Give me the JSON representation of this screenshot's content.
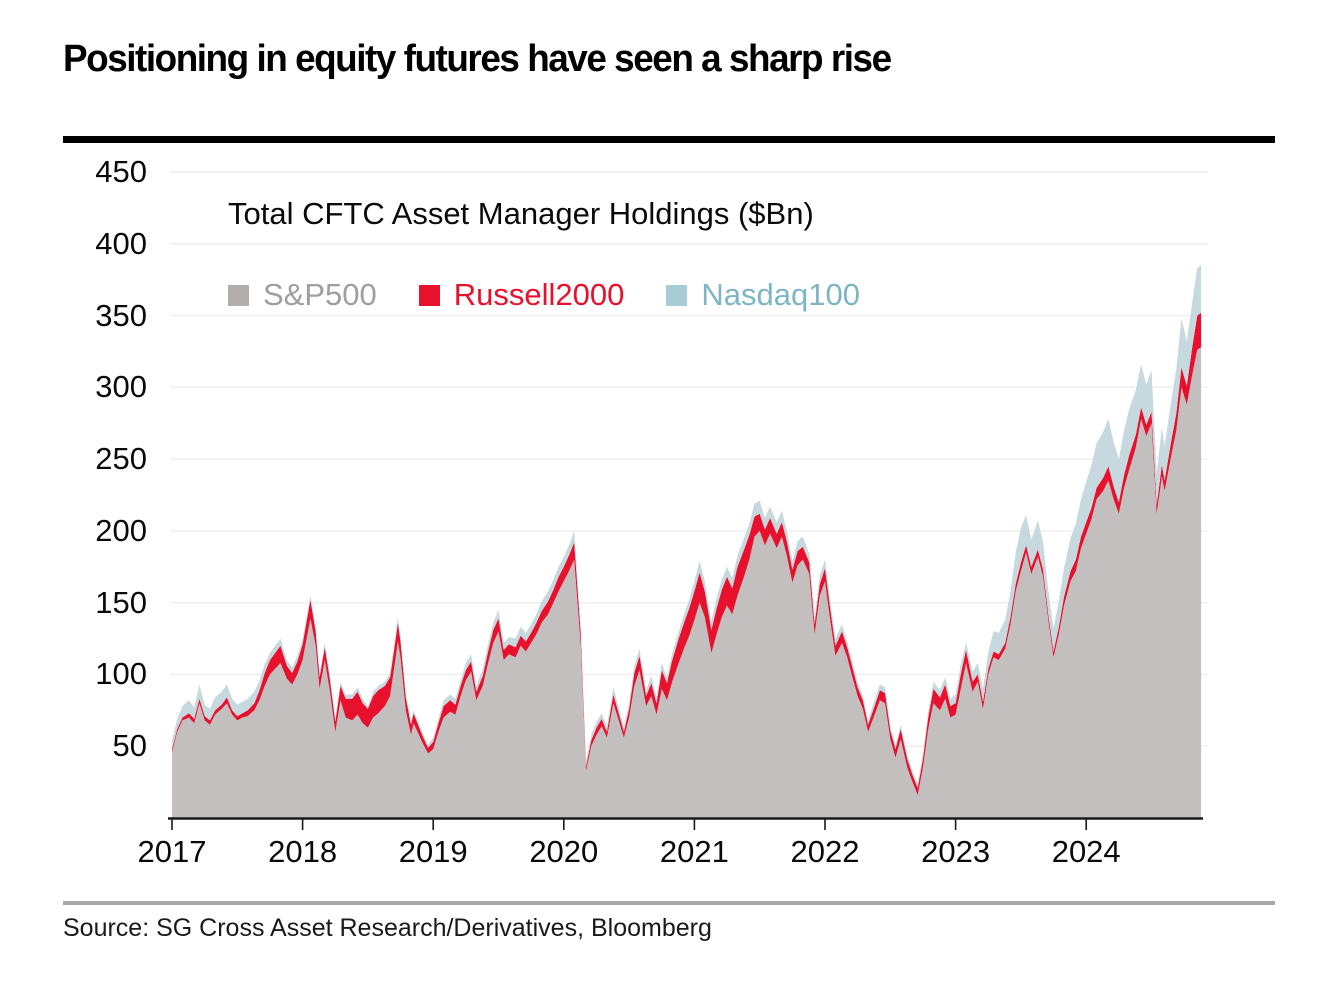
{
  "title": "Positioning in equity futures have seen a sharp rise",
  "source": "Source: SG Cross Asset Research/Derivatives, Bloomberg",
  "rules": {
    "top_color": "#000000",
    "bottom_color": "#a8a8a8"
  },
  "chart_data": {
    "type": "area",
    "stacked": true,
    "title": "Total CFTC Asset Manager Holdings ($Bn)",
    "xlabel": "",
    "ylabel": "",
    "grid": "faint-horizontal",
    "legend_position": "top-left-inside",
    "axis_color": "#1a1a1a",
    "grid_color": "#ededed",
    "ylim": [
      0,
      460
    ],
    "y_ticks": [
      50,
      100,
      150,
      200,
      250,
      300,
      350,
      400,
      450
    ],
    "x_ticks": [
      2017,
      2018,
      2019,
      2020,
      2021,
      2022,
      2023,
      2024
    ],
    "stack_order_note": "values are per-series contributions stacked bottom-to-top: S&P500, Russell2000, Nasdaq100; x is decimal year",
    "x": [
      2017.0,
      2017.04,
      2017.08,
      2017.13,
      2017.17,
      2017.21,
      2017.25,
      2017.29,
      2017.33,
      2017.38,
      2017.42,
      2017.46,
      2017.5,
      2017.54,
      2017.58,
      2017.63,
      2017.67,
      2017.71,
      2017.75,
      2017.79,
      2017.83,
      2017.88,
      2017.92,
      2017.96,
      2018.0,
      2018.06,
      2018.1,
      2018.13,
      2018.17,
      2018.21,
      2018.25,
      2018.29,
      2018.33,
      2018.38,
      2018.42,
      2018.46,
      2018.5,
      2018.54,
      2018.58,
      2018.63,
      2018.67,
      2018.71,
      2018.73,
      2018.75,
      2018.79,
      2018.83,
      2018.85,
      2018.88,
      2018.92,
      2018.96,
      2019.0,
      2019.04,
      2019.08,
      2019.13,
      2019.17,
      2019.21,
      2019.25,
      2019.29,
      2019.33,
      2019.38,
      2019.42,
      2019.46,
      2019.5,
      2019.54,
      2019.58,
      2019.63,
      2019.67,
      2019.71,
      2019.75,
      2019.79,
      2019.83,
      2019.88,
      2019.92,
      2019.96,
      2020.0,
      2020.04,
      2020.08,
      2020.13,
      2020.17,
      2020.21,
      2020.25,
      2020.29,
      2020.33,
      2020.38,
      2020.42,
      2020.46,
      2020.5,
      2020.54,
      2020.58,
      2020.63,
      2020.67,
      2020.71,
      2020.75,
      2020.79,
      2020.83,
      2020.88,
      2020.92,
      2020.96,
      2021.0,
      2021.04,
      2021.08,
      2021.13,
      2021.17,
      2021.21,
      2021.25,
      2021.29,
      2021.33,
      2021.38,
      2021.42,
      2021.46,
      2021.5,
      2021.54,
      2021.58,
      2021.63,
      2021.67,
      2021.71,
      2021.75,
      2021.79,
      2021.83,
      2021.88,
      2021.92,
      2021.96,
      2022.0,
      2022.04,
      2022.08,
      2022.13,
      2022.17,
      2022.21,
      2022.25,
      2022.29,
      2022.33,
      2022.38,
      2022.42,
      2022.46,
      2022.5,
      2022.54,
      2022.58,
      2022.63,
      2022.67,
      2022.71,
      2022.75,
      2022.79,
      2022.83,
      2022.88,
      2022.92,
      2022.96,
      2023.0,
      2023.04,
      2023.08,
      2023.13,
      2023.17,
      2023.21,
      2023.25,
      2023.29,
      2023.33,
      2023.38,
      2023.42,
      2023.46,
      2023.5,
      2023.54,
      2023.58,
      2023.63,
      2023.67,
      2023.71,
      2023.75,
      2023.79,
      2023.83,
      2023.88,
      2023.92,
      2023.96,
      2024.0,
      2024.04,
      2024.08,
      2024.13,
      2024.17,
      2024.21,
      2024.25,
      2024.29,
      2024.33,
      2024.38,
      2024.42,
      2024.46,
      2024.5,
      2024.54,
      2024.58,
      2024.6,
      2024.65,
      2024.69,
      2024.73,
      2024.77,
      2024.81,
      2024.85,
      2024.88
    ],
    "series": [
      {
        "name": "S&P500",
        "color": "#c4bfbf",
        "swatch_color": "#b3aeae",
        "legend_text_color": "#a29d9d",
        "values": [
          46,
          60,
          68,
          70,
          66,
          80,
          68,
          65,
          72,
          76,
          80,
          72,
          68,
          70,
          71,
          75,
          82,
          92,
          100,
          104,
          108,
          97,
          93,
          100,
          110,
          139,
          120,
          90,
          110,
          88,
          60,
          82,
          70,
          68,
          72,
          66,
          63,
          70,
          73,
          78,
          85,
          110,
          123,
          112,
          75,
          58,
          66,
          60,
          52,
          45,
          48,
          60,
          70,
          74,
          72,
          85,
          96,
          102,
          82,
          92,
          108,
          122,
          130,
          110,
          114,
          112,
          120,
          116,
          122,
          128,
          136,
          142,
          150,
          158,
          165,
          172,
          180,
          120,
          33,
          50,
          58,
          64,
          56,
          80,
          68,
          56,
          70,
          92,
          103,
          78,
          85,
          72,
          90,
          82,
          95,
          108,
          118,
          127,
          138,
          150,
          140,
          115,
          128,
          140,
          148,
          142,
          155,
          168,
          180,
          196,
          200,
          190,
          198,
          188,
          196,
          182,
          164,
          176,
          180,
          170,
          128,
          155,
          165,
          138,
          113,
          122,
          112,
          98,
          85,
          76,
          60,
          72,
          82,
          80,
          55,
          42,
          55,
          35,
          25,
          16,
          35,
          62,
          80,
          75,
          83,
          70,
          72,
          90,
          108,
          88,
          95,
          76,
          100,
          112,
          110,
          118,
          135,
          158,
          172,
          185,
          170,
          182,
          168,
          138,
          112,
          128,
          148,
          165,
          172,
          188,
          198,
          208,
          222,
          228,
          235,
          222,
          212,
          230,
          243,
          258,
          278,
          266,
          275,
          212,
          238,
          228,
          252,
          270,
          300,
          288,
          308,
          326,
          328
        ]
      },
      {
        "name": "Russell2000",
        "color": "#e8112d",
        "swatch_color": "#e8112d",
        "legend_text_color": "#e8112d",
        "values": [
          2,
          2,
          2,
          3,
          3,
          3,
          3,
          3,
          3,
          3,
          4,
          3,
          3,
          3,
          4,
          5,
          7,
          9,
          10,
          11,
          12,
          9,
          8,
          9,
          11,
          13,
          10,
          8,
          9,
          8,
          7,
          10,
          13,
          15,
          16,
          14,
          13,
          15,
          16,
          14,
          13,
          13,
          13,
          11,
          9,
          7,
          7,
          6,
          5,
          4,
          5,
          6,
          8,
          8,
          7,
          7,
          7,
          7,
          6,
          7,
          8,
          9,
          9,
          7,
          7,
          7,
          7,
          7,
          7,
          8,
          8,
          9,
          9,
          10,
          10,
          11,
          12,
          8,
          3,
          4,
          5,
          5,
          4,
          6,
          5,
          4,
          6,
          9,
          10,
          7,
          9,
          8,
          13,
          12,
          15,
          17,
          18,
          19,
          20,
          21,
          18,
          16,
          18,
          19,
          20,
          18,
          20,
          19,
          17,
          14,
          12,
          11,
          11,
          10,
          10,
          10,
          9,
          10,
          9,
          8,
          7,
          8,
          9,
          8,
          7,
          8,
          7,
          7,
          6,
          6,
          5,
          6,
          7,
          7,
          6,
          6,
          7,
          6,
          5,
          5,
          6,
          8,
          10,
          9,
          10,
          8,
          8,
          10,
          9,
          7,
          5,
          5,
          4,
          4,
          4,
          4,
          5,
          5,
          6,
          5,
          5,
          5,
          5,
          4,
          4,
          5,
          6,
          7,
          8,
          8,
          8,
          8,
          8,
          9,
          10,
          9,
          8,
          9,
          10,
          9,
          8,
          8,
          8,
          6,
          8,
          7,
          10,
          12,
          14,
          13,
          19,
          24,
          24
        ]
      },
      {
        "name": "Nasdaq100",
        "color": "#c5d9de",
        "swatch_color": "#a8ccd4",
        "legend_text_color": "#7db5c4",
        "values": [
          6,
          7,
          8,
          9,
          8,
          10,
          8,
          8,
          9,
          9,
          9,
          8,
          8,
          8,
          8,
          8,
          7,
          6,
          5,
          5,
          5,
          4,
          4,
          4,
          4,
          3,
          3,
          3,
          3,
          3,
          3,
          3,
          3,
          3,
          3,
          3,
          2,
          3,
          3,
          3,
          3,
          4,
          4,
          3,
          3,
          2,
          2,
          2,
          2,
          2,
          3,
          3,
          4,
          4,
          4,
          4,
          5,
          5,
          4,
          5,
          5,
          5,
          6,
          5,
          5,
          6,
          6,
          6,
          6,
          6,
          7,
          7,
          7,
          7,
          7,
          7,
          8,
          5,
          3,
          4,
          4,
          4,
          4,
          5,
          4,
          4,
          4,
          5,
          5,
          4,
          5,
          4,
          5,
          4,
          5,
          5,
          6,
          6,
          7,
          8,
          7,
          6,
          7,
          7,
          7,
          7,
          8,
          8,
          8,
          9,
          9,
          8,
          8,
          8,
          8,
          7,
          6,
          7,
          7,
          6,
          5,
          6,
          6,
          5,
          5,
          5,
          4,
          4,
          4,
          3,
          3,
          4,
          4,
          4,
          3,
          3,
          3,
          3,
          3,
          3,
          3,
          4,
          5,
          5,
          5,
          5,
          6,
          7,
          5,
          7,
          8,
          9,
          12,
          14,
          15,
          16,
          18,
          22,
          24,
          21,
          19,
          20,
          19,
          17,
          16,
          18,
          20,
          23,
          25,
          26,
          28,
          30,
          31,
          32,
          33,
          31,
          30,
          31,
          32,
          31,
          30,
          28,
          29,
          22,
          26,
          24,
          28,
          31,
          34,
          31,
          31,
          33,
          33
        ]
      }
    ]
  }
}
